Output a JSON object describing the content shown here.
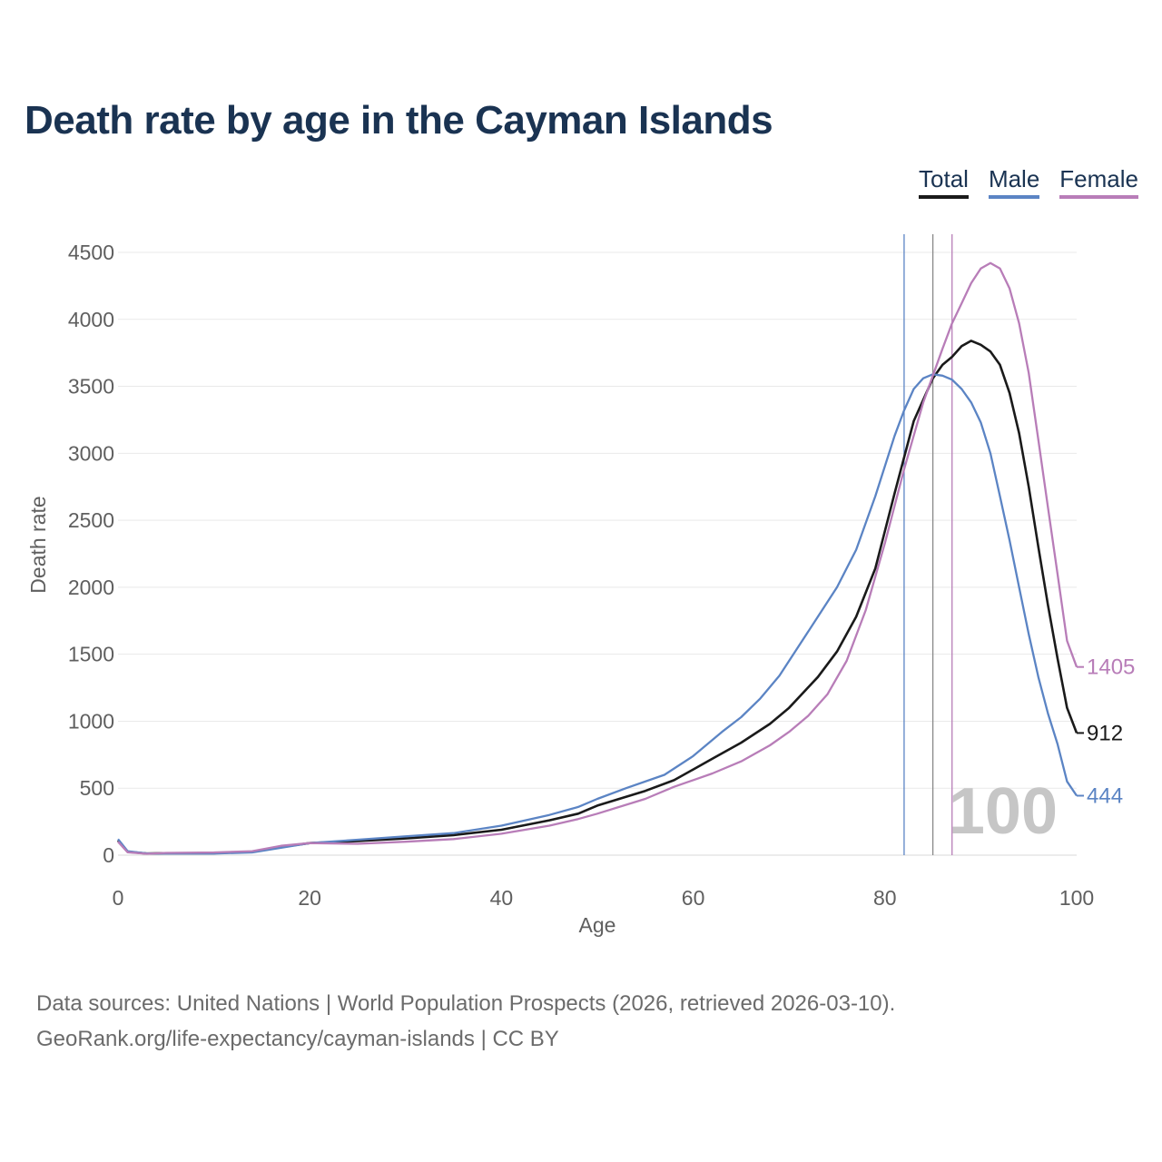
{
  "chart_data": {
    "type": "line",
    "title": "Death rate by age in the Cayman Islands",
    "xlabel": "Age",
    "ylabel": "Death rate",
    "xlim": [
      0,
      100
    ],
    "ylim": [
      0,
      4500
    ],
    "x_ticks": [
      0,
      20,
      40,
      60,
      80,
      100
    ],
    "y_ticks": [
      0,
      500,
      1000,
      1500,
      2000,
      2500,
      3000,
      3500,
      4000,
      4500
    ],
    "grid": true,
    "year_label": "100",
    "series": [
      {
        "name": "Total",
        "color": "#1a1a1a",
        "end_label": "912",
        "reference_age": 85,
        "points": [
          [
            0,
            110
          ],
          [
            1,
            25
          ],
          [
            3,
            12
          ],
          [
            5,
            15
          ],
          [
            10,
            15
          ],
          [
            14,
            25
          ],
          [
            17,
            60
          ],
          [
            20,
            90
          ],
          [
            25,
            105
          ],
          [
            30,
            125
          ],
          [
            35,
            150
          ],
          [
            40,
            190
          ],
          [
            45,
            260
          ],
          [
            48,
            310
          ],
          [
            50,
            370
          ],
          [
            55,
            480
          ],
          [
            58,
            560
          ],
          [
            60,
            640
          ],
          [
            62,
            720
          ],
          [
            65,
            840
          ],
          [
            68,
            980
          ],
          [
            70,
            1100
          ],
          [
            73,
            1330
          ],
          [
            75,
            1520
          ],
          [
            77,
            1780
          ],
          [
            79,
            2140
          ],
          [
            81,
            2700
          ],
          [
            83,
            3240
          ],
          [
            85,
            3560
          ],
          [
            86,
            3660
          ],
          [
            87,
            3720
          ],
          [
            88,
            3800
          ],
          [
            89,
            3840
          ],
          [
            90,
            3810
          ],
          [
            91,
            3760
          ],
          [
            92,
            3660
          ],
          [
            93,
            3450
          ],
          [
            94,
            3150
          ],
          [
            95,
            2750
          ],
          [
            96,
            2300
          ],
          [
            97,
            1870
          ],
          [
            98,
            1470
          ],
          [
            99,
            1100
          ],
          [
            100,
            912
          ]
        ]
      },
      {
        "name": "Male",
        "color": "#5b84c4",
        "end_label": "444",
        "reference_age": 82,
        "points": [
          [
            0,
            120
          ],
          [
            1,
            30
          ],
          [
            3,
            12
          ],
          [
            5,
            12
          ],
          [
            10,
            12
          ],
          [
            14,
            20
          ],
          [
            17,
            55
          ],
          [
            20,
            90
          ],
          [
            25,
            115
          ],
          [
            30,
            140
          ],
          [
            35,
            165
          ],
          [
            40,
            220
          ],
          [
            45,
            300
          ],
          [
            48,
            360
          ],
          [
            50,
            420
          ],
          [
            53,
            500
          ],
          [
            57,
            600
          ],
          [
            60,
            740
          ],
          [
            63,
            920
          ],
          [
            65,
            1030
          ],
          [
            67,
            1170
          ],
          [
            69,
            1340
          ],
          [
            71,
            1560
          ],
          [
            73,
            1780
          ],
          [
            75,
            2000
          ],
          [
            77,
            2280
          ],
          [
            79,
            2680
          ],
          [
            81,
            3130
          ],
          [
            82,
            3320
          ],
          [
            83,
            3480
          ],
          [
            84,
            3560
          ],
          [
            85,
            3590
          ],
          [
            86,
            3580
          ],
          [
            87,
            3550
          ],
          [
            88,
            3480
          ],
          [
            89,
            3380
          ],
          [
            90,
            3230
          ],
          [
            91,
            3000
          ],
          [
            92,
            2680
          ],
          [
            93,
            2350
          ],
          [
            94,
            2000
          ],
          [
            95,
            1650
          ],
          [
            96,
            1330
          ],
          [
            97,
            1060
          ],
          [
            98,
            830
          ],
          [
            99,
            550
          ],
          [
            100,
            444
          ]
        ]
      },
      {
        "name": "Female",
        "color": "#b87db8",
        "end_label": "1405",
        "reference_age": 87,
        "points": [
          [
            0,
            100
          ],
          [
            1,
            22
          ],
          [
            3,
            10
          ],
          [
            5,
            17
          ],
          [
            10,
            20
          ],
          [
            14,
            30
          ],
          [
            17,
            70
          ],
          [
            20,
            90
          ],
          [
            25,
            85
          ],
          [
            30,
            100
          ],
          [
            35,
            120
          ],
          [
            40,
            160
          ],
          [
            45,
            220
          ],
          [
            48,
            270
          ],
          [
            50,
            310
          ],
          [
            55,
            420
          ],
          [
            58,
            510
          ],
          [
            62,
            610
          ],
          [
            65,
            700
          ],
          [
            68,
            820
          ],
          [
            70,
            920
          ],
          [
            72,
            1040
          ],
          [
            74,
            1200
          ],
          [
            76,
            1450
          ],
          [
            78,
            1830
          ],
          [
            80,
            2330
          ],
          [
            82,
            2880
          ],
          [
            84,
            3380
          ],
          [
            86,
            3780
          ],
          [
            87,
            3970
          ],
          [
            88,
            4120
          ],
          [
            89,
            4270
          ],
          [
            90,
            4380
          ],
          [
            91,
            4420
          ],
          [
            92,
            4380
          ],
          [
            93,
            4230
          ],
          [
            94,
            3970
          ],
          [
            95,
            3600
          ],
          [
            96,
            3100
          ],
          [
            97,
            2600
          ],
          [
            98,
            2100
          ],
          [
            99,
            1600
          ],
          [
            100,
            1405
          ]
        ]
      }
    ]
  },
  "footer": {
    "line1": "Data sources: United Nations | World Population Prospects (2026, retrieved 2026-03-10).",
    "line2": "GeoRank.org/life-expectancy/cayman-islands | CC BY"
  }
}
